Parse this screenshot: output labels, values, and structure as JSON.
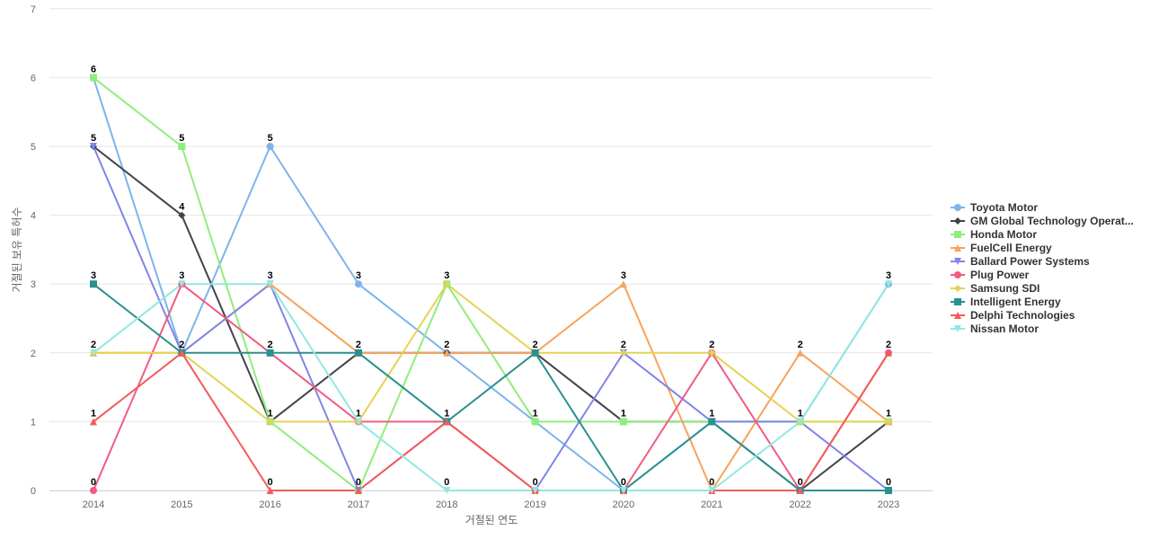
{
  "chart_data": {
    "type": "line",
    "xlabel": "거절된 연도",
    "ylabel": "거절된 보유 특허수",
    "ylim": [
      0,
      7
    ],
    "yticks": [
      0,
      1,
      2,
      3,
      4,
      5,
      6,
      7
    ],
    "categories": [
      "2014",
      "2015",
      "2016",
      "2017",
      "2018",
      "2019",
      "2020",
      "2021",
      "2022",
      "2023"
    ],
    "legend_position": "right",
    "grid": true,
    "series": [
      {
        "name": "Toyota Motor",
        "color": "#7cb5ec",
        "marker": "circle",
        "values": [
          6,
          2,
          5,
          3,
          2,
          1,
          0,
          1,
          1,
          3
        ]
      },
      {
        "name": "GM Global Technology Operat...",
        "color": "#434348",
        "marker": "diamond",
        "values": [
          5,
          4,
          1,
          2,
          2,
          2,
          1,
          1,
          0,
          1
        ]
      },
      {
        "name": "Honda Motor",
        "color": "#90ed7d",
        "marker": "square",
        "values": [
          6,
          5,
          1,
          0,
          3,
          1,
          1,
          1,
          1,
          1
        ]
      },
      {
        "name": "FuelCell Energy",
        "color": "#f7a35c",
        "marker": "triangle",
        "values": [
          2,
          2,
          3,
          2,
          2,
          2,
          3,
          0,
          2,
          1
        ]
      },
      {
        "name": "Ballard Power Systems",
        "color": "#8085e9",
        "marker": "triangle-down",
        "values": [
          5,
          2,
          3,
          0,
          1,
          0,
          2,
          1,
          1,
          0
        ]
      },
      {
        "name": "Plug Power",
        "color": "#f15c80",
        "marker": "circle",
        "values": [
          0,
          3,
          2,
          1,
          1,
          0,
          0,
          2,
          0,
          2
        ]
      },
      {
        "name": "Samsung SDI",
        "color": "#e4d354",
        "marker": "diamond",
        "values": [
          2,
          2,
          1,
          1,
          3,
          2,
          2,
          2,
          1,
          1
        ]
      },
      {
        "name": "Intelligent Energy",
        "color": "#2b908f",
        "marker": "square",
        "values": [
          3,
          2,
          2,
          2,
          1,
          2,
          0,
          1,
          0,
          0
        ]
      },
      {
        "name": "Delphi Technologies",
        "color": "#f45b5b",
        "marker": "triangle",
        "values": [
          1,
          2,
          0,
          0,
          1,
          0,
          0,
          0,
          0,
          2
        ]
      },
      {
        "name": "Nissan Motor",
        "color": "#91e8e1",
        "marker": "triangle-down",
        "values": [
          2,
          3,
          3,
          1,
          0,
          0,
          0,
          0,
          1,
          3
        ]
      }
    ],
    "data_labels": [
      {
        "x": "2014",
        "values": [
          "6",
          "5",
          "3",
          "2",
          "1",
          "0"
        ]
      },
      {
        "x": "2015",
        "values": [
          "5",
          "4",
          "3",
          "2"
        ]
      },
      {
        "x": "2016",
        "values": [
          "5",
          "3",
          "2",
          "1",
          "0"
        ]
      },
      {
        "x": "2017",
        "values": [
          "3",
          "2",
          "1",
          "0"
        ]
      },
      {
        "x": "2018",
        "values": [
          "3",
          "2",
          "1",
          "0"
        ]
      },
      {
        "x": "2019",
        "values": [
          "2",
          "1",
          "0"
        ]
      },
      {
        "x": "2020",
        "values": [
          "3",
          "2",
          "1",
          "0"
        ]
      },
      {
        "x": "2021",
        "values": [
          "2",
          "1",
          "0"
        ]
      },
      {
        "x": "2022",
        "values": [
          "2",
          "1",
          "0"
        ]
      },
      {
        "x": "2023",
        "values": [
          "3",
          "2",
          "1",
          "0"
        ]
      }
    ]
  }
}
